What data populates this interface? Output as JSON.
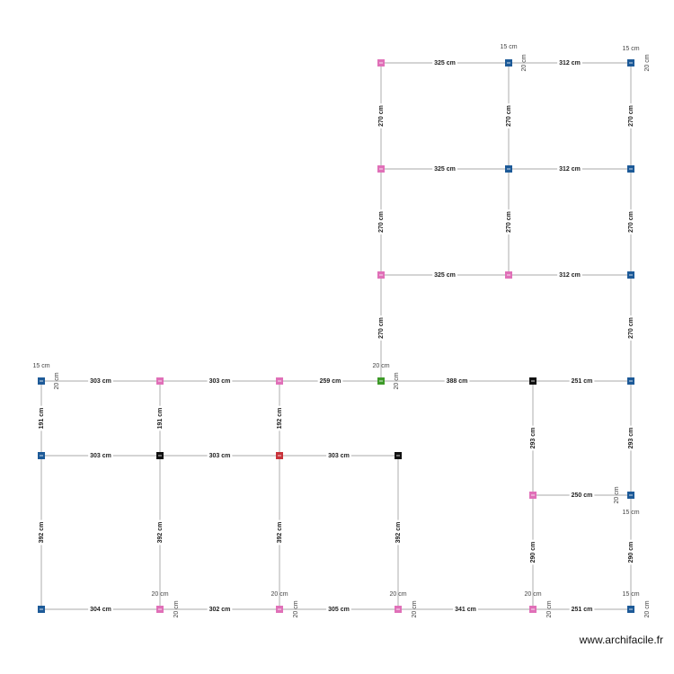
{
  "segment_labels": [
    "325 cm",
    "312 cm",
    "325 cm",
    "312 cm",
    "325 cm",
    "312 cm",
    "270 cm",
    "270 cm",
    "270 cm",
    "270 cm",
    "270 cm",
    "270 cm",
    "270 cm",
    "270 cm",
    "303 cm",
    "303 cm",
    "259 cm",
    "388 cm",
    "251 cm",
    "191 cm",
    "191 cm",
    "192 cm",
    "303 cm",
    "303 cm",
    "303 cm",
    "293 cm",
    "293 cm",
    "250 cm",
    "392 cm",
    "392 cm",
    "392 cm",
    "392 cm",
    "290 cm",
    "290 cm",
    "304 cm",
    "302 cm",
    "305 cm",
    "341 cm",
    "251 cm"
  ],
  "node_labels": [
    "15 cm",
    "20 cm",
    "15 cm",
    "20 cm",
    "15 cm",
    "20 cm",
    "20 cm",
    "20 cm",
    "20 cm",
    "15 cm",
    "20 cm",
    "20 cm",
    "20 cm",
    "20 cm",
    "20 cm",
    "20 cm",
    "20 cm",
    "15 cm",
    "20 cm"
  ],
  "watermark": "www.archifacile.fr"
}
